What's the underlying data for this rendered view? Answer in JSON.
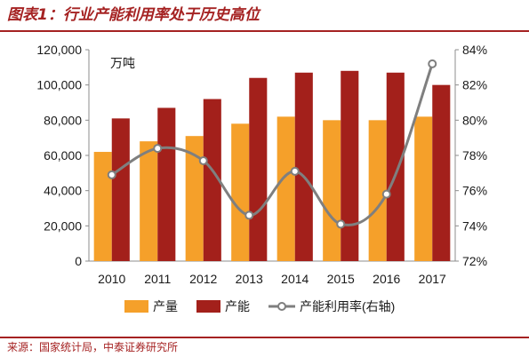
{
  "header": {
    "title": "图表1：行业产能利用率处于历史高位"
  },
  "footer": {
    "source": "来源：国家统计局，中泰证券研究所"
  },
  "chart_data": {
    "type": "bar",
    "categories": [
      "2010",
      "2011",
      "2012",
      "2013",
      "2014",
      "2015",
      "2016",
      "2017"
    ],
    "unit_label": "万吨",
    "series": [
      {
        "name": "产量",
        "kind": "bar",
        "axis": "left",
        "color": "#f5a02a",
        "values": [
          62000,
          68000,
          71000,
          78000,
          82000,
          80000,
          80000,
          82000
        ]
      },
      {
        "name": "产能",
        "kind": "bar",
        "axis": "left",
        "color": "#a3201b",
        "values": [
          81000,
          87000,
          92000,
          104000,
          107000,
          108000,
          107000,
          100000
        ]
      },
      {
        "name": "产能利用率(右轴)",
        "kind": "line",
        "axis": "right",
        "color": "#7f7f7f",
        "values": [
          76.9,
          78.4,
          77.7,
          74.6,
          77.1,
          74.1,
          75.8,
          83.2
        ]
      }
    ],
    "left_axis": {
      "ylim": [
        0,
        120000
      ],
      "ticks": [
        0,
        20000,
        40000,
        60000,
        80000,
        100000,
        120000
      ],
      "tick_labels": [
        "0",
        "20,000",
        "40,000",
        "60,000",
        "80,000",
        "100,000",
        "120,000"
      ]
    },
    "right_axis": {
      "ylim": [
        72,
        84
      ],
      "ticks": [
        72,
        74,
        76,
        78,
        80,
        82,
        84
      ],
      "tick_labels": [
        "72%",
        "74%",
        "76%",
        "78%",
        "80%",
        "82%",
        "84%"
      ]
    },
    "grid": false,
    "legend_position": "bottom"
  }
}
